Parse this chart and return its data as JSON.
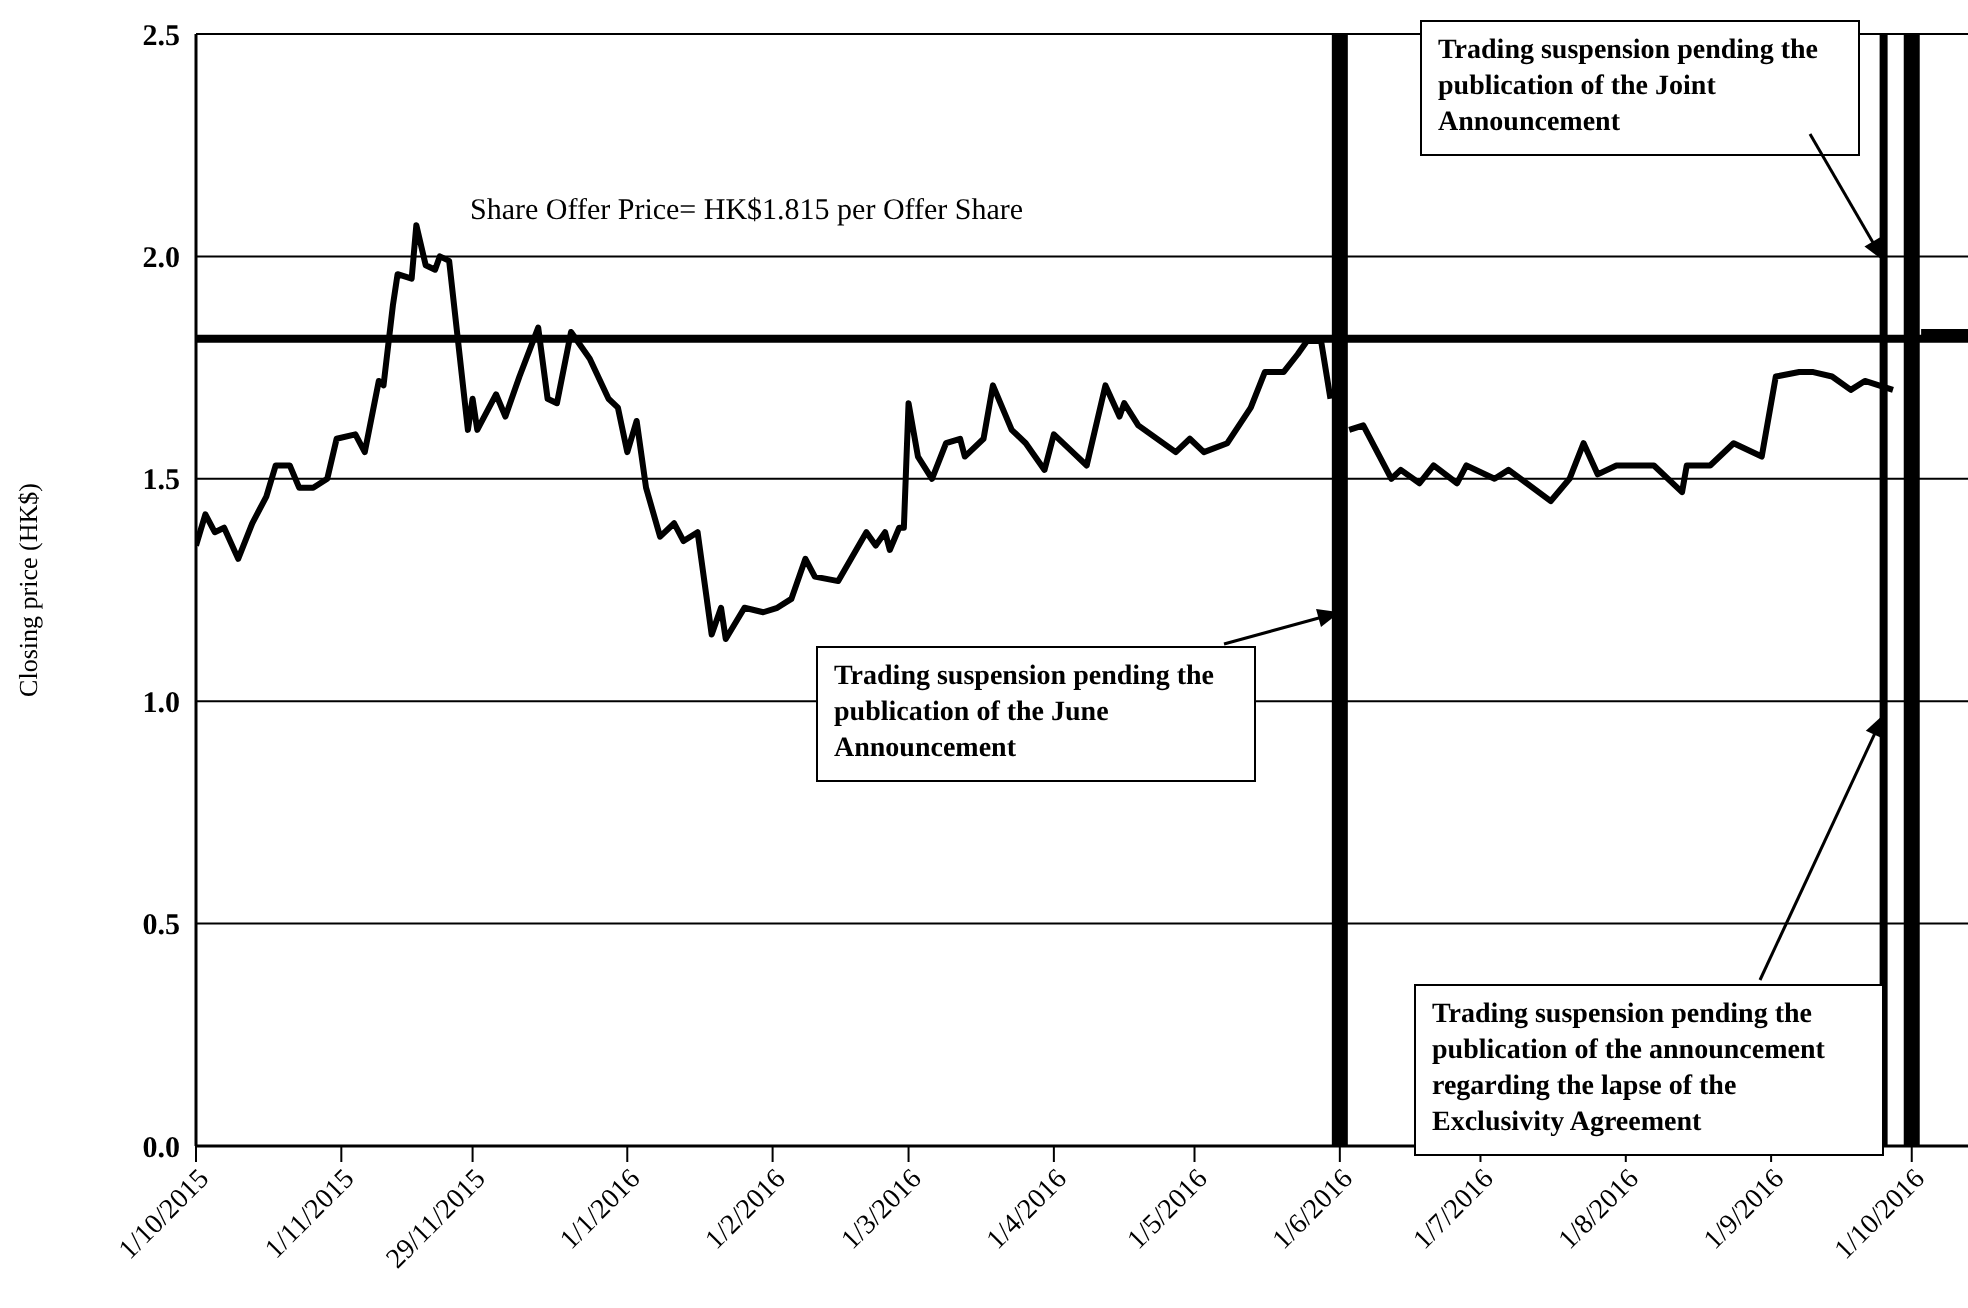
{
  "chart_data": {
    "type": "line",
    "ylabel": "Closing price (HK$)",
    "x": [
      "2015-10-01",
      "2015-10-03",
      "2015-10-05",
      "2015-10-07",
      "2015-10-10",
      "2015-10-13",
      "2015-10-16",
      "2015-10-18",
      "2015-10-21",
      "2015-10-23",
      "2015-10-26",
      "2015-10-29",
      "2015-10-31",
      "2015-11-04",
      "2015-11-06",
      "2015-11-09",
      "2015-11-10",
      "2015-11-12",
      "2015-11-13",
      "2015-11-16",
      "2015-11-17",
      "2015-11-19",
      "2015-11-21",
      "2015-11-22",
      "2015-11-24",
      "2015-11-28",
      "2015-11-29",
      "2015-11-30",
      "2015-12-04",
      "2015-12-06",
      "2015-12-09",
      "2015-12-13",
      "2015-12-15",
      "2015-12-17",
      "2015-12-20",
      "2015-12-24",
      "2015-12-28",
      "2015-12-30",
      "2016-01-01",
      "2016-01-03",
      "2016-01-05",
      "2016-01-08",
      "2016-01-11",
      "2016-01-13",
      "2016-01-16",
      "2016-01-19",
      "2016-01-21",
      "2016-01-22",
      "2016-01-26",
      "2016-01-30",
      "2016-02-02",
      "2016-02-05",
      "2016-02-08",
      "2016-02-10",
      "2016-02-15",
      "2016-02-21",
      "2016-02-23",
      "2016-02-25",
      "2016-02-26",
      "2016-02-28",
      "2016-02-29",
      "2016-03-01",
      "2016-03-03",
      "2016-03-06",
      "2016-03-09",
      "2016-03-12",
      "2016-03-13",
      "2016-03-17",
      "2016-03-19",
      "2016-03-23",
      "2016-03-26",
      "2016-03-30",
      "2016-04-01",
      "2016-04-05",
      "2016-04-08",
      "2016-04-12",
      "2016-04-15",
      "2016-04-16",
      "2016-04-19",
      "2016-04-27",
      "2016-04-30",
      "2016-05-03",
      "2016-05-08",
      "2016-05-13",
      "2016-05-16",
      "2016-05-20",
      "2016-05-23",
      "2016-05-25",
      "2016-05-28",
      "2016-05-30",
      "2016-06-01",
      "2016-06-03",
      "2016-06-06",
      "2016-06-09",
      "2016-06-12",
      "2016-06-14",
      "2016-06-18",
      "2016-06-21",
      "2016-06-26",
      "2016-06-28",
      "2016-07-04",
      "2016-07-07",
      "2016-07-16",
      "2016-07-20",
      "2016-07-23",
      "2016-07-26",
      "2016-07-30",
      "2016-08-07",
      "2016-08-13",
      "2016-08-14",
      "2016-08-19",
      "2016-08-24",
      "2016-08-30",
      "2016-09-02",
      "2016-09-07",
      "2016-09-10",
      "2016-09-14",
      "2016-09-18",
      "2016-09-21",
      "2016-09-27",
      "2016-09-30",
      "2016-10-03",
      "2016-10-13"
    ],
    "values": [
      1.35,
      1.42,
      1.38,
      1.39,
      1.32,
      1.4,
      1.46,
      1.53,
      1.53,
      1.48,
      1.48,
      1.5,
      1.59,
      1.6,
      1.56,
      1.72,
      1.71,
      1.89,
      1.96,
      1.95,
      2.07,
      1.98,
      1.97,
      2.0,
      1.99,
      1.61,
      1.68,
      1.61,
      1.69,
      1.64,
      1.73,
      1.84,
      1.68,
      1.67,
      1.83,
      1.77,
      1.68,
      1.66,
      1.56,
      1.63,
      1.48,
      1.37,
      1.4,
      1.36,
      1.38,
      1.15,
      1.21,
      1.14,
      1.21,
      1.2,
      1.21,
      1.23,
      1.32,
      1.28,
      1.27,
      1.38,
      1.35,
      1.38,
      1.34,
      1.39,
      1.39,
      1.67,
      1.55,
      1.5,
      1.58,
      1.59,
      1.55,
      1.59,
      1.71,
      1.61,
      1.58,
      1.52,
      1.6,
      1.56,
      1.53,
      1.71,
      1.64,
      1.67,
      1.62,
      1.56,
      1.59,
      1.56,
      1.58,
      1.66,
      1.74,
      1.74,
      1.78,
      1.81,
      1.81,
      1.68,
      null,
      1.61,
      1.62,
      1.56,
      1.5,
      1.52,
      1.49,
      1.53,
      1.49,
      1.53,
      1.5,
      1.52,
      1.45,
      1.5,
      1.58,
      1.51,
      1.53,
      1.53,
      1.47,
      1.53,
      1.53,
      1.58,
      1.55,
      1.73,
      1.74,
      1.74,
      1.73,
      1.7,
      1.72,
      1.7,
      null,
      1.83,
      1.83
    ],
    "color": "#000000",
    "xlim": [
      "2015-10-01",
      "2016-10-13"
    ],
    "xticks": [
      {
        "value": "2015-10-01",
        "label": "1/10/2015"
      },
      {
        "value": "2015-11-01",
        "label": "1/11/2015"
      },
      {
        "value": "2015-11-29",
        "label": "29/11/2015"
      },
      {
        "value": "2016-01-01",
        "label": "1/1/2016"
      },
      {
        "value": "2016-02-01",
        "label": "1/2/2016"
      },
      {
        "value": "2016-03-01",
        "label": "1/3/2016"
      },
      {
        "value": "2016-04-01",
        "label": "1/4/2016"
      },
      {
        "value": "2016-05-01",
        "label": "1/5/2016"
      },
      {
        "value": "2016-06-01",
        "label": "1/6/2016"
      },
      {
        "value": "2016-07-01",
        "label": "1/7/2016"
      },
      {
        "value": "2016-08-01",
        "label": "1/8/2016"
      },
      {
        "value": "2016-09-01",
        "label": "1/9/2016"
      },
      {
        "value": "2016-10-01",
        "label": "1/10/2016"
      }
    ],
    "ylim": [
      0,
      2.5
    ],
    "yticks": [
      {
        "value": 0,
        "label": "0.0"
      },
      {
        "value": 0.5,
        "label": "0.5"
      },
      {
        "value": 1,
        "label": "1.0"
      },
      {
        "value": 1.5,
        "label": "1.5"
      },
      {
        "value": 2,
        "label": "2.0"
      },
      {
        "value": 2.5,
        "label": "2.5"
      }
    ],
    "grid": "y",
    "ref_lines": [
      {
        "axis": "y",
        "value": 1.815,
        "label": "Share Offer Price= HK$1.815 per Offer Share",
        "color": "#000000"
      },
      {
        "axis": "x",
        "value": "2016-06-01",
        "color": "#000000"
      },
      {
        "axis": "x",
        "value": "2016-09-25",
        "color": "#000000"
      },
      {
        "axis": "x",
        "value": "2016-10-01",
        "color": "#000000"
      }
    ],
    "annotations": [
      {
        "text": "Trading suspension pending the publication of the June Announcement",
        "x": "2016-06-01",
        "y": 1.2
      },
      {
        "text": "Trading suspension pending the publication of the announcement regarding the lapse of the Exclusivity Agreement",
        "x": "2016-09-25",
        "y": 0.97
      },
      {
        "text": "Trading suspension pending the publication of the Joint Announcement",
        "x": "2016-09-25",
        "y": 1.99
      }
    ]
  }
}
